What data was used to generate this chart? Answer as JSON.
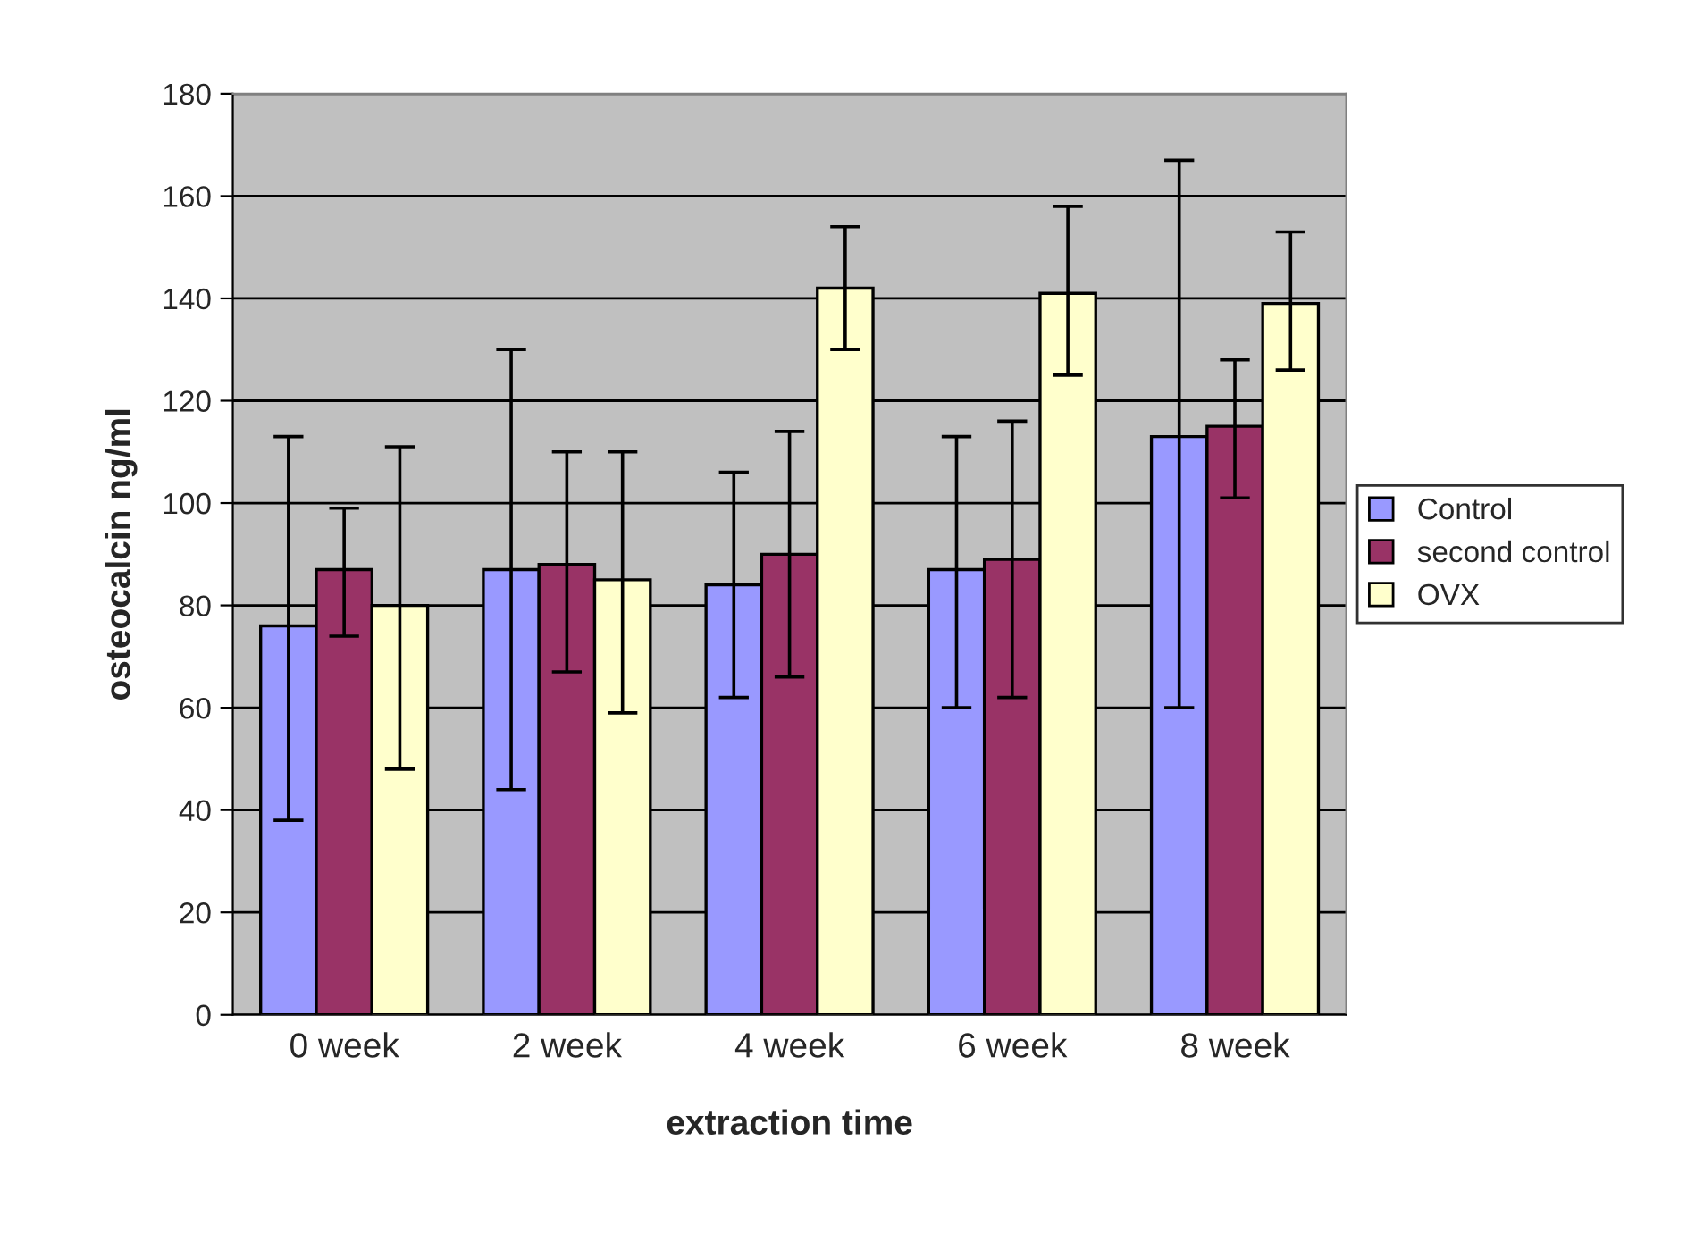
{
  "chart_data": {
    "type": "bar",
    "xlabel": "extraction time",
    "ylabel": "osteocalcin ng/ml",
    "categories": [
      "0 week",
      "2 week",
      "4 week",
      "6 week",
      "8 week"
    ],
    "series": [
      {
        "name": "Control",
        "color": "#9999ff",
        "values": [
          76,
          87,
          84,
          87,
          113
        ],
        "errors": [
          [
            38,
            113
          ],
          [
            44,
            130
          ],
          [
            62,
            106
          ],
          [
            60,
            113
          ],
          [
            60,
            167
          ]
        ]
      },
      {
        "name": "second control",
        "color": "#993366",
        "values": [
          87,
          88,
          90,
          89,
          115
        ],
        "errors": [
          [
            74,
            99
          ],
          [
            67,
            110
          ],
          [
            66,
            114
          ],
          [
            62,
            116
          ],
          [
            101,
            128
          ]
        ]
      },
      {
        "name": "OVX",
        "color": "#ffffcc",
        "values": [
          80,
          85,
          142,
          141,
          139
        ],
        "errors": [
          [
            48,
            111
          ],
          [
            59,
            110
          ],
          [
            130,
            154
          ],
          [
            125,
            158
          ],
          [
            126,
            153
          ]
        ]
      }
    ],
    "ylim": [
      0,
      180
    ],
    "yticks": [
      0,
      20,
      40,
      60,
      80,
      100,
      120,
      140,
      160,
      180
    ],
    "grid": "y",
    "legend": "right"
  }
}
